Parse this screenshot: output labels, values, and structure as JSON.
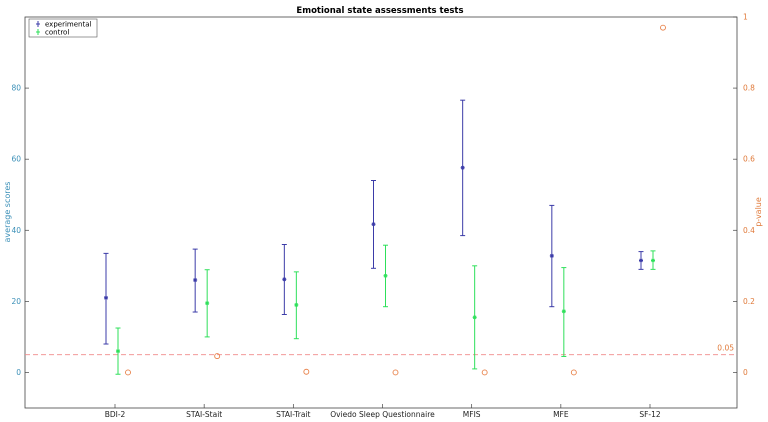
{
  "chart_data": {
    "type": "scatter",
    "title": "Emotional state assessments tests",
    "ylabel_left": "average scores",
    "ylabel_right": "p-value",
    "categories": [
      "BDI-2",
      "STAI-Stait",
      "STAI-Trait",
      "Oviedo Sleep Questionnaire",
      "MFIS",
      "MFE",
      "SF-12"
    ],
    "ylim_left": [
      -10,
      100
    ],
    "yticks_left": [
      "0",
      "20",
      "40",
      "60",
      "80"
    ],
    "ylim_right": [
      -0.1,
      1.0
    ],
    "yticks_right": [
      "0",
      "0.2",
      "0.4",
      "0.6",
      "0.8",
      "1"
    ],
    "series": [
      {
        "name": "experimental",
        "color": "#3b3ba8",
        "marker": "asterisk",
        "values": [
          21,
          26,
          26.2,
          41.7,
          57.6,
          32.8,
          31.5
        ],
        "lower": [
          8,
          17,
          16.3,
          29.3,
          38.5,
          18.5,
          29
        ],
        "upper": [
          33.5,
          34.7,
          36,
          54,
          76.6,
          47,
          34
        ]
      },
      {
        "name": "control",
        "color": "#2ee05a",
        "marker": "asterisk",
        "values": [
          6,
          19.5,
          19,
          27.2,
          15.5,
          17.2,
          31.5
        ],
        "lower": [
          -0.5,
          10,
          9.5,
          18.5,
          1,
          4.5,
          29
        ],
        "upper": [
          12.5,
          28.9,
          28.3,
          35.8,
          30,
          29.5,
          34.2
        ]
      }
    ],
    "pvalues": {
      "color": "#e8824a",
      "values": [
        0.0,
        0.046,
        0.002,
        0.0,
        0.0,
        0.0,
        0.97
      ]
    },
    "threshold": {
      "value": 0.05,
      "label": "0.05",
      "color": "#f08a8a"
    },
    "legend_position": "top-left",
    "grid": false
  }
}
